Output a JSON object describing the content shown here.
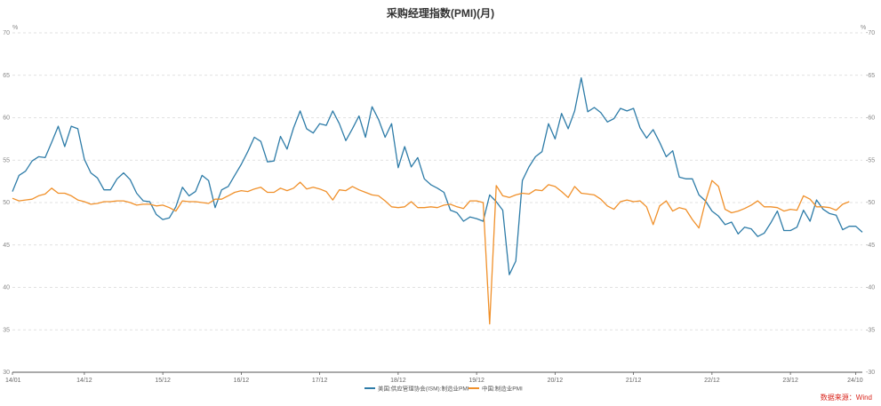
{
  "chart_data": {
    "type": "line",
    "title": "采购经理指数(PMI)(月)",
    "y_unit_left": "%",
    "y_unit_right": "%",
    "ylim": [
      30,
      70
    ],
    "y_ticks_left": [
      30,
      35,
      40,
      45,
      50,
      55,
      60,
      65,
      70
    ],
    "y_ticks_right": [
      30,
      35,
      40,
      45,
      50,
      55,
      60,
      65,
      70
    ],
    "x_ticks": [
      "14/01",
      "14/12",
      "15/12",
      "16/12",
      "17/12",
      "18/12",
      "19/12",
      "20/12",
      "21/12",
      "22/12",
      "23/12",
      "24/10"
    ],
    "grid": "horizontal-dashed",
    "legend_position": "bottom",
    "source_note": "数据来源：Wind",
    "x_start": "2014-01",
    "series": [
      {
        "name": "美国:供应管理协会(ISM):制造业PMI",
        "color": "#2e7ca8",
        "values": [
          51.3,
          53.2,
          53.7,
          54.9,
          55.4,
          55.3,
          57.1,
          59.0,
          56.6,
          59.0,
          58.7,
          55.1,
          53.5,
          52.9,
          51.5,
          51.5,
          52.8,
          53.5,
          52.7,
          51.1,
          50.2,
          50.1,
          48.6,
          48.0,
          48.2,
          49.5,
          51.8,
          50.8,
          51.3,
          53.2,
          52.6,
          49.4,
          51.5,
          51.9,
          53.2,
          54.5,
          56.0,
          57.7,
          57.2,
          54.8,
          54.9,
          57.8,
          56.3,
          58.8,
          60.8,
          58.7,
          58.2,
          59.3,
          59.1,
          60.8,
          59.3,
          57.3,
          58.7,
          60.2,
          57.7,
          61.3,
          59.8,
          57.7,
          59.3,
          54.1,
          56.6,
          54.2,
          55.3,
          52.8,
          52.1,
          51.7,
          51.2,
          49.1,
          48.8,
          47.8,
          48.3,
          48.1,
          47.8,
          50.9,
          50.1,
          49.1,
          41.5,
          43.1,
          52.6,
          54.2,
          55.4,
          56.0,
          59.3,
          57.5,
          60.5,
          58.7,
          60.8,
          64.7,
          60.7,
          61.2,
          60.6,
          59.5,
          59.9,
          61.1,
          60.8,
          61.1,
          58.8,
          57.6,
          58.6,
          57.1,
          55.4,
          56.1,
          53.0,
          52.8,
          52.8,
          50.9,
          50.2,
          49.0,
          48.4,
          47.4,
          47.7,
          46.3,
          47.1,
          46.9,
          46.0,
          46.4,
          47.6,
          49.0,
          46.7,
          46.7,
          47.1,
          49.1,
          47.8,
          50.3,
          49.2,
          48.7,
          48.5,
          46.8,
          47.2,
          47.2,
          46.5
        ]
      },
      {
        "name": "中国:制造业PMI",
        "color": "#f0902a",
        "values": [
          50.5,
          50.2,
          50.3,
          50.4,
          50.8,
          51.0,
          51.7,
          51.1,
          51.1,
          50.8,
          50.3,
          50.1,
          49.8,
          49.9,
          50.1,
          50.1,
          50.2,
          50.2,
          50.0,
          49.7,
          49.8,
          49.8,
          49.6,
          49.7,
          49.4,
          49.0,
          50.2,
          50.1,
          50.1,
          50.0,
          49.9,
          50.4,
          50.4,
          50.8,
          51.2,
          51.4,
          51.3,
          51.6,
          51.8,
          51.2,
          51.2,
          51.7,
          51.4,
          51.7,
          52.4,
          51.6,
          51.8,
          51.6,
          51.3,
          50.3,
          51.5,
          51.4,
          51.9,
          51.5,
          51.2,
          50.9,
          50.8,
          50.2,
          49.5,
          49.4,
          49.5,
          50.1,
          49.4,
          49.4,
          49.5,
          49.4,
          49.7,
          49.8,
          49.5,
          49.3,
          50.2,
          50.2,
          50.0,
          35.7,
          52.0,
          50.8,
          50.6,
          50.9,
          51.1,
          51.0,
          51.5,
          51.4,
          52.1,
          51.9,
          51.3,
          50.6,
          51.9,
          51.1,
          51.0,
          50.9,
          50.4,
          49.6,
          49.2,
          50.1,
          50.3,
          50.1,
          50.2,
          49.5,
          47.4,
          49.6,
          50.2,
          49.0,
          49.4,
          49.2,
          48.0,
          47.0,
          50.1,
          52.6,
          51.9,
          49.2,
          48.8,
          49.0,
          49.3,
          49.7,
          50.2,
          49.5,
          49.5,
          49.4,
          49.0,
          49.2,
          49.1,
          50.8,
          50.4,
          49.5,
          49.5,
          49.4,
          49.1,
          49.8,
          50.1
        ]
      }
    ]
  }
}
